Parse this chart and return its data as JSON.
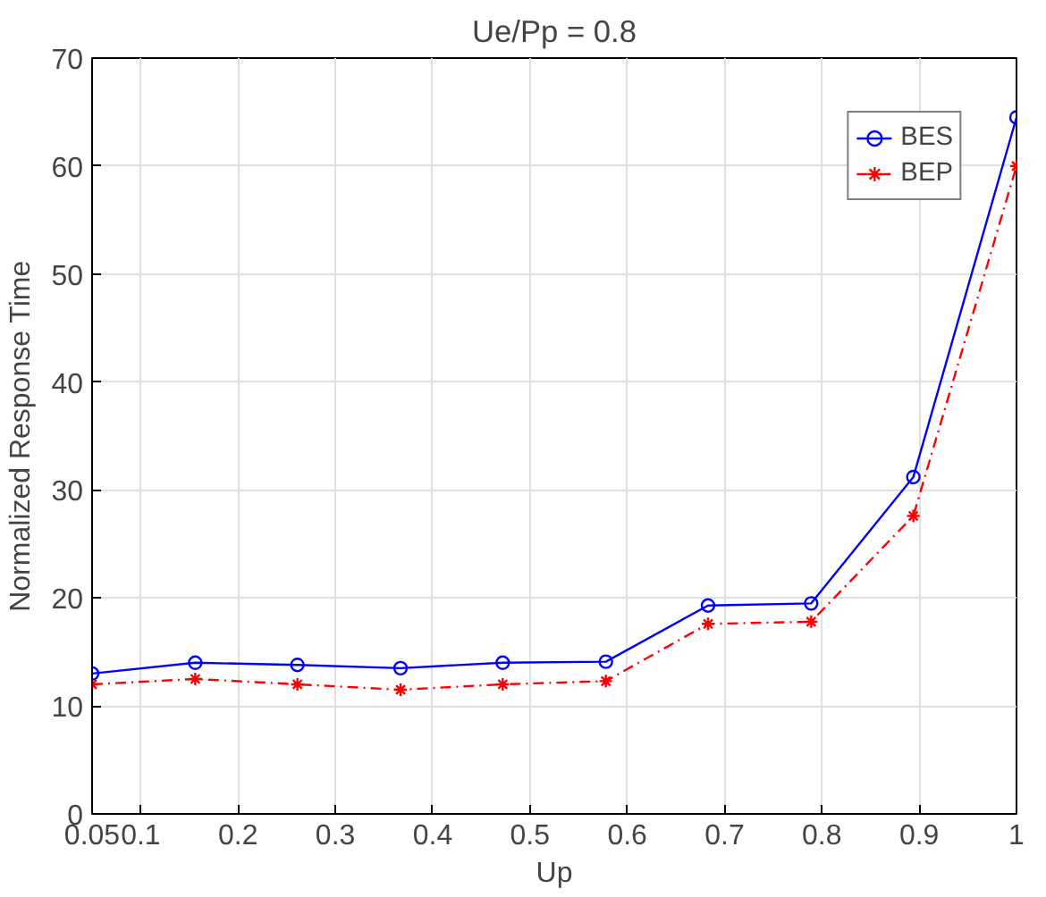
{
  "chart_data": {
    "type": "line",
    "title": "Ue/Pp = 0.8",
    "xlabel": "Up",
    "ylabel": "Normalized Response Time",
    "x": [
      0.05,
      0.156,
      0.261,
      0.367,
      0.472,
      0.578,
      0.683,
      0.789,
      0.894,
      1.0
    ],
    "series": [
      {
        "name": "BES",
        "color": "#0000ff",
        "marker": "circle",
        "line_style": "solid",
        "values": [
          13.0,
          14.0,
          13.8,
          13.5,
          14.0,
          14.1,
          19.3,
          19.5,
          31.2,
          64.5
        ]
      },
      {
        "name": "BEP",
        "color": "#ff0000",
        "marker": "cross",
        "line_style": "dashed",
        "values": [
          12.0,
          12.5,
          12.0,
          11.5,
          12.0,
          12.3,
          17.6,
          17.8,
          27.6,
          60.0
        ]
      }
    ],
    "xlim": [
      0.05,
      1
    ],
    "ylim": [
      0,
      70
    ],
    "xticks": [
      0.05,
      0.1,
      0.2,
      0.3,
      0.4,
      0.5,
      0.6,
      0.7,
      0.8,
      0.9,
      1
    ],
    "yticks": [
      0,
      10,
      20,
      30,
      40,
      50,
      60,
      70
    ],
    "grid": true,
    "legend": "top right"
  }
}
